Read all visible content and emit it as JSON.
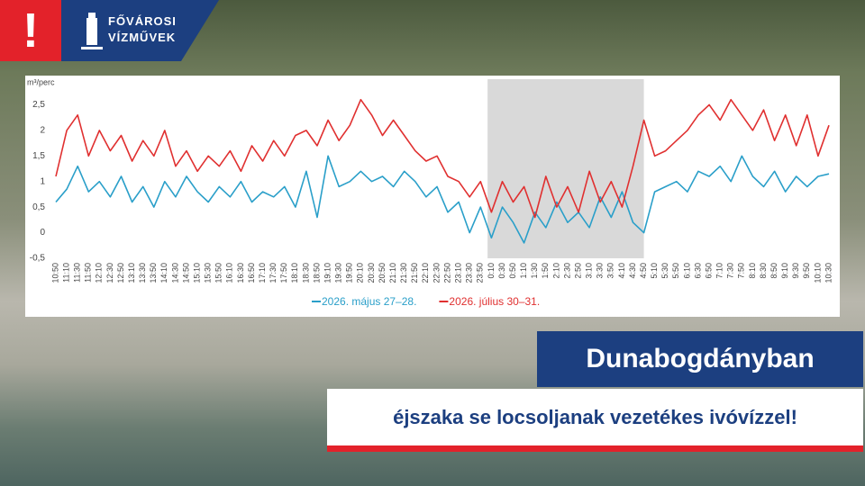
{
  "header": {
    "alert": "!",
    "logo_line1": "FŐVÁROSI",
    "logo_line2": "VÍZMŰVEK"
  },
  "chart_data": {
    "type": "line",
    "y_label": "m³/perc",
    "categories": [
      "10:50",
      "11:10",
      "11:30",
      "11:50",
      "12:10",
      "12:30",
      "12:50",
      "13:10",
      "13:30",
      "13:50",
      "14:10",
      "14:30",
      "14:50",
      "15:10",
      "15:30",
      "15:50",
      "16:10",
      "16:30",
      "16:50",
      "17:10",
      "17:30",
      "17:50",
      "18:10",
      "18:30",
      "18:50",
      "19:10",
      "19:30",
      "19:50",
      "20:10",
      "20:30",
      "20:50",
      "21:10",
      "21:30",
      "21:50",
      "22:10",
      "22:30",
      "22:50",
      "23:10",
      "23:30",
      "23:50",
      "0:10",
      "0:30",
      "0:50",
      "1:10",
      "1:30",
      "1:50",
      "2:10",
      "2:30",
      "2:50",
      "3:10",
      "3:30",
      "3:50",
      "4:10",
      "4:30",
      "4:50",
      "5:10",
      "5:30",
      "5:50",
      "6:10",
      "6:30",
      "6:50",
      "7:10",
      "7:30",
      "7:50",
      "8:10",
      "8:30",
      "8:50",
      "9:10",
      "9:30",
      "9:50",
      "10:10",
      "10:30"
    ],
    "series": [
      {
        "name": "2026. május 27–28.",
        "color": "#2a9fc9",
        "values": [
          0.6,
          0.85,
          1.3,
          0.8,
          1.0,
          0.7,
          1.1,
          0.6,
          0.9,
          0.5,
          1.0,
          0.7,
          1.1,
          0.8,
          0.6,
          0.9,
          0.7,
          1.0,
          0.6,
          0.8,
          0.7,
          0.9,
          0.5,
          1.2,
          0.3,
          1.5,
          0.9,
          1.0,
          1.2,
          1.0,
          1.1,
          0.9,
          1.2,
          1.0,
          0.7,
          0.9,
          0.4,
          0.6,
          0.0,
          0.5,
          -0.1,
          0.5,
          0.2,
          -0.2,
          0.4,
          0.1,
          0.6,
          0.2,
          0.4,
          0.1,
          0.7,
          0.3,
          0.8,
          0.2,
          0.0,
          0.8,
          0.9,
          1.0,
          0.8,
          1.2,
          1.1,
          1.3,
          1.0,
          1.5,
          1.1,
          0.9,
          1.2,
          0.8,
          1.1,
          0.9,
          1.1,
          1.15
        ]
      },
      {
        "name": "2026. július 30–31.",
        "color": "#e03030",
        "values": [
          1.1,
          2.0,
          2.3,
          1.5,
          2.0,
          1.6,
          1.9,
          1.4,
          1.8,
          1.5,
          2.0,
          1.3,
          1.6,
          1.2,
          1.5,
          1.3,
          1.6,
          1.2,
          1.7,
          1.4,
          1.8,
          1.5,
          1.9,
          2.0,
          1.7,
          2.2,
          1.8,
          2.1,
          2.6,
          2.3,
          1.9,
          2.2,
          1.9,
          1.6,
          1.4,
          1.5,
          1.1,
          1.0,
          0.7,
          1.0,
          0.4,
          1.0,
          0.6,
          0.9,
          0.3,
          1.1,
          0.5,
          0.9,
          0.4,
          1.2,
          0.6,
          1.0,
          0.5,
          1.3,
          2.2,
          1.5,
          1.6,
          1.8,
          2.0,
          2.3,
          2.5,
          2.2,
          2.6,
          2.3,
          2.0,
          2.4,
          1.8,
          2.3,
          1.7,
          2.3,
          1.5,
          2.1
        ]
      }
    ],
    "ylim": [
      -0.5,
      3.0
    ],
    "yticks": [
      {
        "value": -0.5,
        "label": "-0,5"
      },
      0,
      {
        "value": 0.5,
        "label": "0,5"
      },
      1,
      {
        "value": 1.5,
        "label": "1,5"
      },
      2,
      {
        "value": 2.5,
        "label": "2,5"
      }
    ],
    "shaded_range": [
      "0:10",
      "4:50"
    ],
    "shaded_color": "#d9d9d9",
    "grid": false
  },
  "banner": {
    "title": "Dunabogdányban",
    "subtitle": "éjszaka se locsoljanak vezetékes ivóvízzel!"
  }
}
